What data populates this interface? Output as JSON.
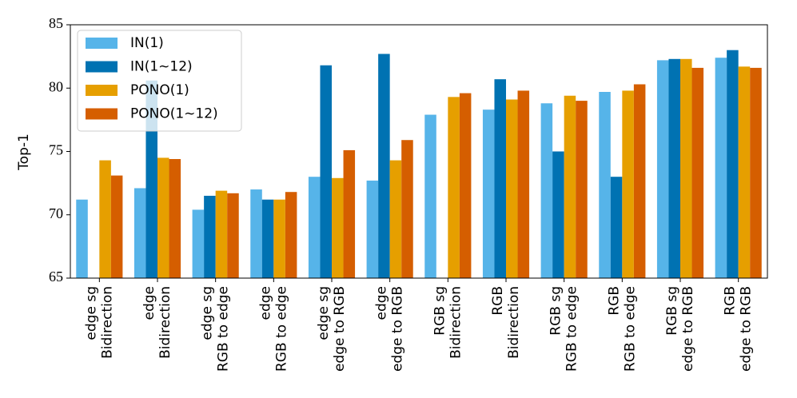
{
  "chart_data": {
    "type": "bar",
    "ylabel": "Top-1",
    "categories": [
      [
        "edge sg",
        "Bidirection"
      ],
      [
        "edge",
        "Bidirection"
      ],
      [
        "edge sg",
        "RGB to edge"
      ],
      [
        "edge",
        "RGB to edge"
      ],
      [
        "edge sg",
        "edge to RGB"
      ],
      [
        "edge",
        "edge to RGB"
      ],
      [
        "RGB sg",
        "Bidirection"
      ],
      [
        "RGB",
        "Bidirection"
      ],
      [
        "RGB sg",
        "RGB to edge"
      ],
      [
        "RGB",
        "RGB to edge"
      ],
      [
        "RGB sg",
        "edge to RGB"
      ],
      [
        "RGB",
        "edge to RGB"
      ]
    ],
    "series": [
      {
        "name": "IN(1)",
        "color": "#56b4e9",
        "values": [
          71.2,
          72.1,
          70.4,
          72.0,
          73.0,
          72.7,
          77.9,
          78.3,
          78.8,
          79.7,
          82.2,
          82.4
        ]
      },
      {
        "name": "IN(1∼12)",
        "color": "#0072b2",
        "values": [
          null,
          80.6,
          71.5,
          71.2,
          81.8,
          82.7,
          null,
          80.7,
          75.0,
          73.0,
          82.3,
          83.0
        ]
      },
      {
        "name": "PONO(1)",
        "color": "#e69f00",
        "values": [
          74.3,
          74.5,
          71.9,
          71.2,
          72.9,
          74.3,
          79.3,
          79.1,
          79.4,
          79.8,
          82.3,
          81.7
        ]
      },
      {
        "name": "PONO(1∼12)",
        "color": "#d55e00",
        "values": [
          73.1,
          74.4,
          71.7,
          71.8,
          75.1,
          75.9,
          79.6,
          79.8,
          79.0,
          80.3,
          81.6,
          81.6
        ]
      }
    ],
    "ylim": [
      65,
      85
    ],
    "yticks": [
      65,
      70,
      75,
      80,
      85
    ],
    "legend": "upper left"
  }
}
